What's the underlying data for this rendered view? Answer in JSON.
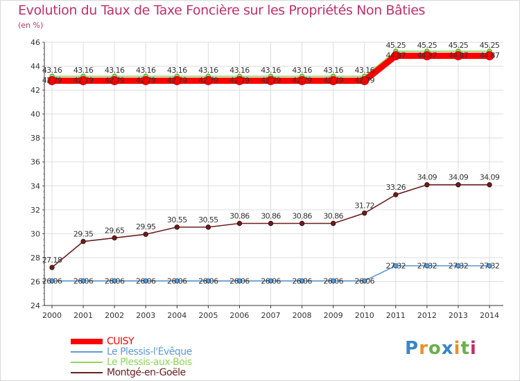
{
  "chart_data": {
    "type": "line",
    "title": "Evolution du Taux de Taxe Foncière sur les Propriétés Non Bâties",
    "ylabel": "(en %)",
    "xlabel": "",
    "ylim": [
      24,
      46
    ],
    "yticks": [
      24,
      26,
      28,
      30,
      32,
      34,
      36,
      38,
      40,
      42,
      44,
      46
    ],
    "categories": [
      "2000",
      "2001",
      "2002",
      "2003",
      "2004",
      "2005",
      "2006",
      "2007",
      "2008",
      "2009",
      "2010",
      "2011",
      "2012",
      "2013",
      "2014"
    ],
    "series": [
      {
        "name": "CUISY",
        "color": "#ff0000",
        "values": [
          42.79,
          42.79,
          42.79,
          42.79,
          42.79,
          42.79,
          42.79,
          42.79,
          42.79,
          42.79,
          42.79,
          44.87,
          44.87,
          44.87,
          44.87
        ]
      },
      {
        "name": "Le Plessis-l'Évêque",
        "color": "#5b9bd5",
        "values": [
          26.06,
          26.06,
          26.06,
          26.06,
          26.06,
          26.06,
          26.06,
          26.06,
          26.06,
          26.06,
          26.06,
          27.32,
          27.32,
          27.32,
          27.32
        ]
      },
      {
        "name": "Le Plessis-aux-Bois",
        "color": "#8ed65a",
        "values": [
          43.16,
          43.16,
          43.16,
          43.16,
          43.16,
          43.16,
          43.16,
          43.16,
          43.16,
          43.16,
          43.16,
          45.25,
          45.25,
          45.25,
          45.25
        ]
      },
      {
        "name": "Montgé-en-Goële",
        "color": "#6b1d1d",
        "values": [
          27.18,
          29.35,
          29.65,
          29.95,
          30.55,
          30.55,
          30.86,
          30.86,
          30.86,
          30.86,
          31.72,
          33.26,
          34.09,
          34.09,
          34.09
        ]
      }
    ]
  },
  "legend": {
    "items": [
      {
        "label": "CUISY",
        "color": "#ff0000"
      },
      {
        "label": "Le Plessis-l'Évêque",
        "color": "#5b9bd5"
      },
      {
        "label": "Le Plessis-aux-Bois",
        "color": "#8ed65a"
      },
      {
        "label": "Montgé-en-Goële",
        "color": "#6b1d1d"
      }
    ]
  },
  "logo": {
    "text": "Proxiti"
  }
}
